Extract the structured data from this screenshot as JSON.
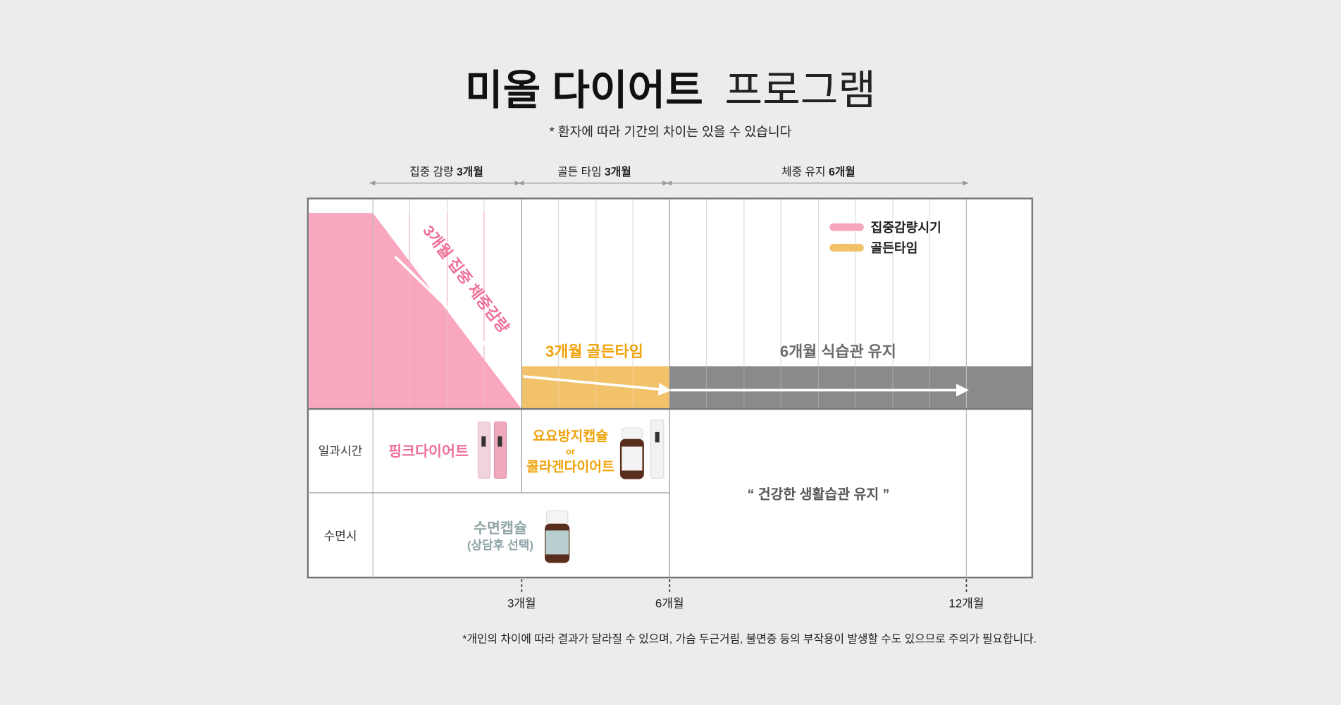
{
  "header": {
    "title_bold": "미올 다이어트",
    "title_light": "프로그램",
    "subtitle": "* 환자에 따라 기간의 차이는 있을 수 있습니다"
  },
  "periods": [
    {
      "label": "집중 감량",
      "value": "3개월"
    },
    {
      "label": "골든 타임",
      "value": "3개월"
    },
    {
      "label": "체중 유지",
      "value": "6개월"
    }
  ],
  "legend": [
    {
      "label": "집중감량시기",
      "color": "#f7a5bd"
    },
    {
      "label": "골든타임",
      "color": "#f2c26b"
    }
  ],
  "chart": {
    "phase1_label": "3개월 집중 체중감량",
    "phase2_label": "3개월 골든타임",
    "phase3_label": "6개월 식습관 유지",
    "colors": {
      "pink": "#f9a6bf",
      "pink_text": "#ef6e96",
      "orange": "#f2c26b",
      "orange_text": "#f0a30a",
      "gray": "#8a8a8a"
    }
  },
  "rows": [
    {
      "label": "일과시간"
    },
    {
      "label": "수면시"
    }
  ],
  "products": {
    "pink_diet": "핑크다이어트",
    "yoyo_capsule": "요요방지캡슐",
    "or": "or",
    "collagen_diet": "콜라겐다이어트",
    "sleep_capsule": "수면캡슐",
    "sleep_note": "(상담후 선택)",
    "maintain": "“ 건강한 생활습관 유지 ”"
  },
  "axis": {
    "ticks": [
      "3개월",
      "6개월",
      "12개월"
    ]
  },
  "footer_note": "*개인의 차이에 따라 결과가 달라질 수 있으며, 가슴 두근거림, 불면증 등의 부작용이 발생할 수도 있으므로 주의가 필요합니다."
}
